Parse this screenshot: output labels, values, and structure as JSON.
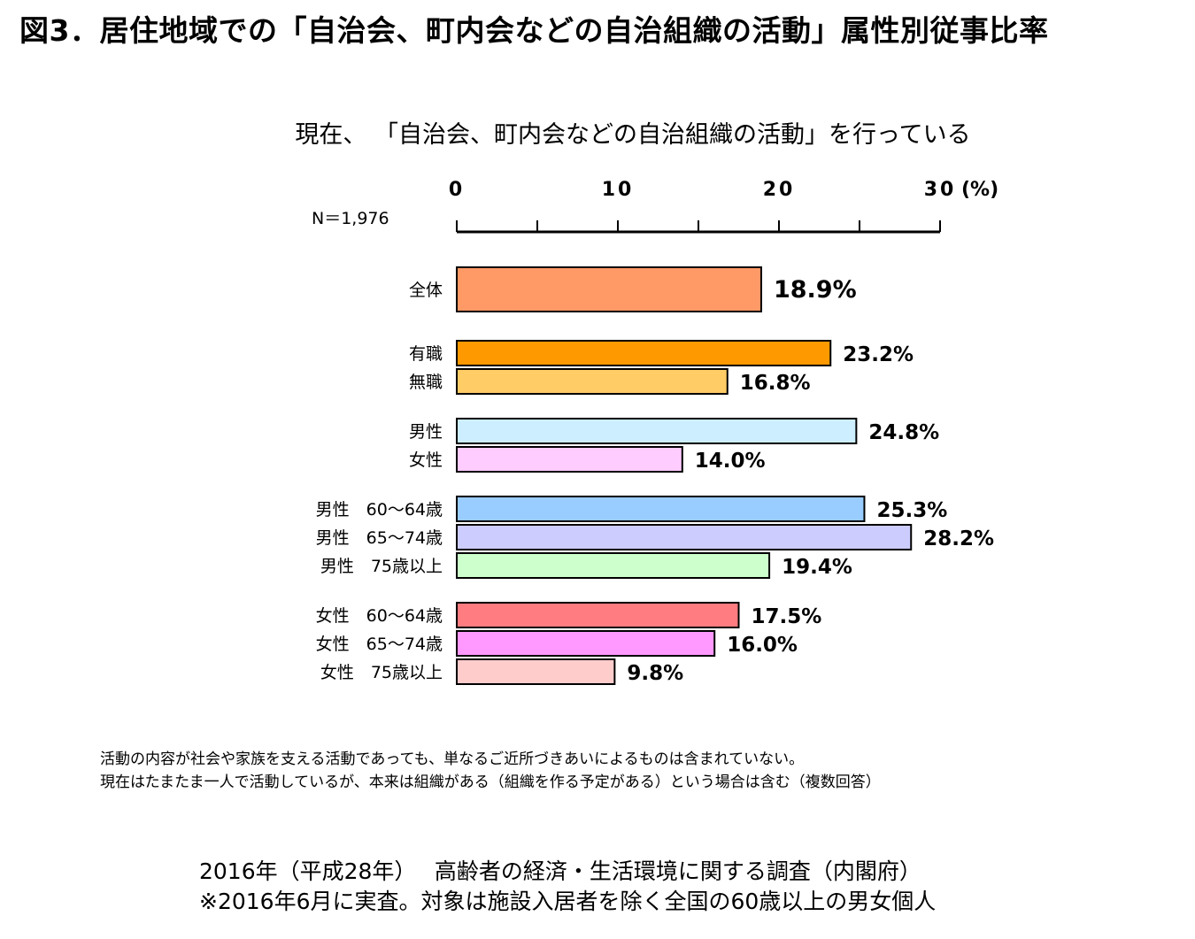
{
  "title": "図3．居住地域での「自治会、町内会などの自治組織の活動」属性別従事比率",
  "subtitle": "現在、 「自治会、町内会などの自治組織の活動」を行っている",
  "n_label": "N＝1,976",
  "notes": [
    "活動の内容が社会や家族を支える活動であっても、単なるご近所づきあいによるものは含まれていない。",
    "現在はたまたま一人で活動しているが、本来は組織がある（組織を作る予定がある）という場合は含む（複数回答）"
  ],
  "footer": [
    "2016年（平成28年）　 高齢者の経済・生活環境に関する調査（内閣府）",
    "※2016年6月に実査。対象は施設入居者を除く全国の60歳以上の男女個人"
  ],
  "chart_data": {
    "type": "bar",
    "orientation": "horizontal",
    "xlim": [
      0,
      30
    ],
    "x_ticks": [
      "0",
      "10",
      "20",
      "30"
    ],
    "x_unit": "(%)",
    "categories": [
      "全体",
      "有職",
      "無職",
      "男性",
      "女性",
      "男性　60～64歳",
      "男性　65～74歳",
      "男性　75歳以上",
      "女性　60～64歳",
      "女性　65～74歳",
      "女性　75歳以上"
    ],
    "values": [
      18.9,
      23.2,
      16.8,
      24.8,
      14.0,
      25.3,
      28.2,
      19.4,
      17.5,
      16.0,
      9.8
    ],
    "value_labels": [
      "18.9%",
      "23.2%",
      "16.8%",
      "24.8%",
      "14.0%",
      "25.3%",
      "28.2%",
      "19.4%",
      "17.5%",
      "16.0%",
      "9.8%"
    ],
    "colors": [
      "#FF9966",
      "#FF9900",
      "#FFCC66",
      "#CCEEFF",
      "#FFCCFF",
      "#99CCFF",
      "#CCCCFF",
      "#CCFFCC",
      "#FF7C80",
      "#FF99FF",
      "#FFCCCC"
    ],
    "groups": [
      [
        0
      ],
      [
        1,
        2
      ],
      [
        3,
        4
      ],
      [
        5,
        6,
        7
      ],
      [
        8,
        9,
        10
      ]
    ],
    "grid": false
  }
}
